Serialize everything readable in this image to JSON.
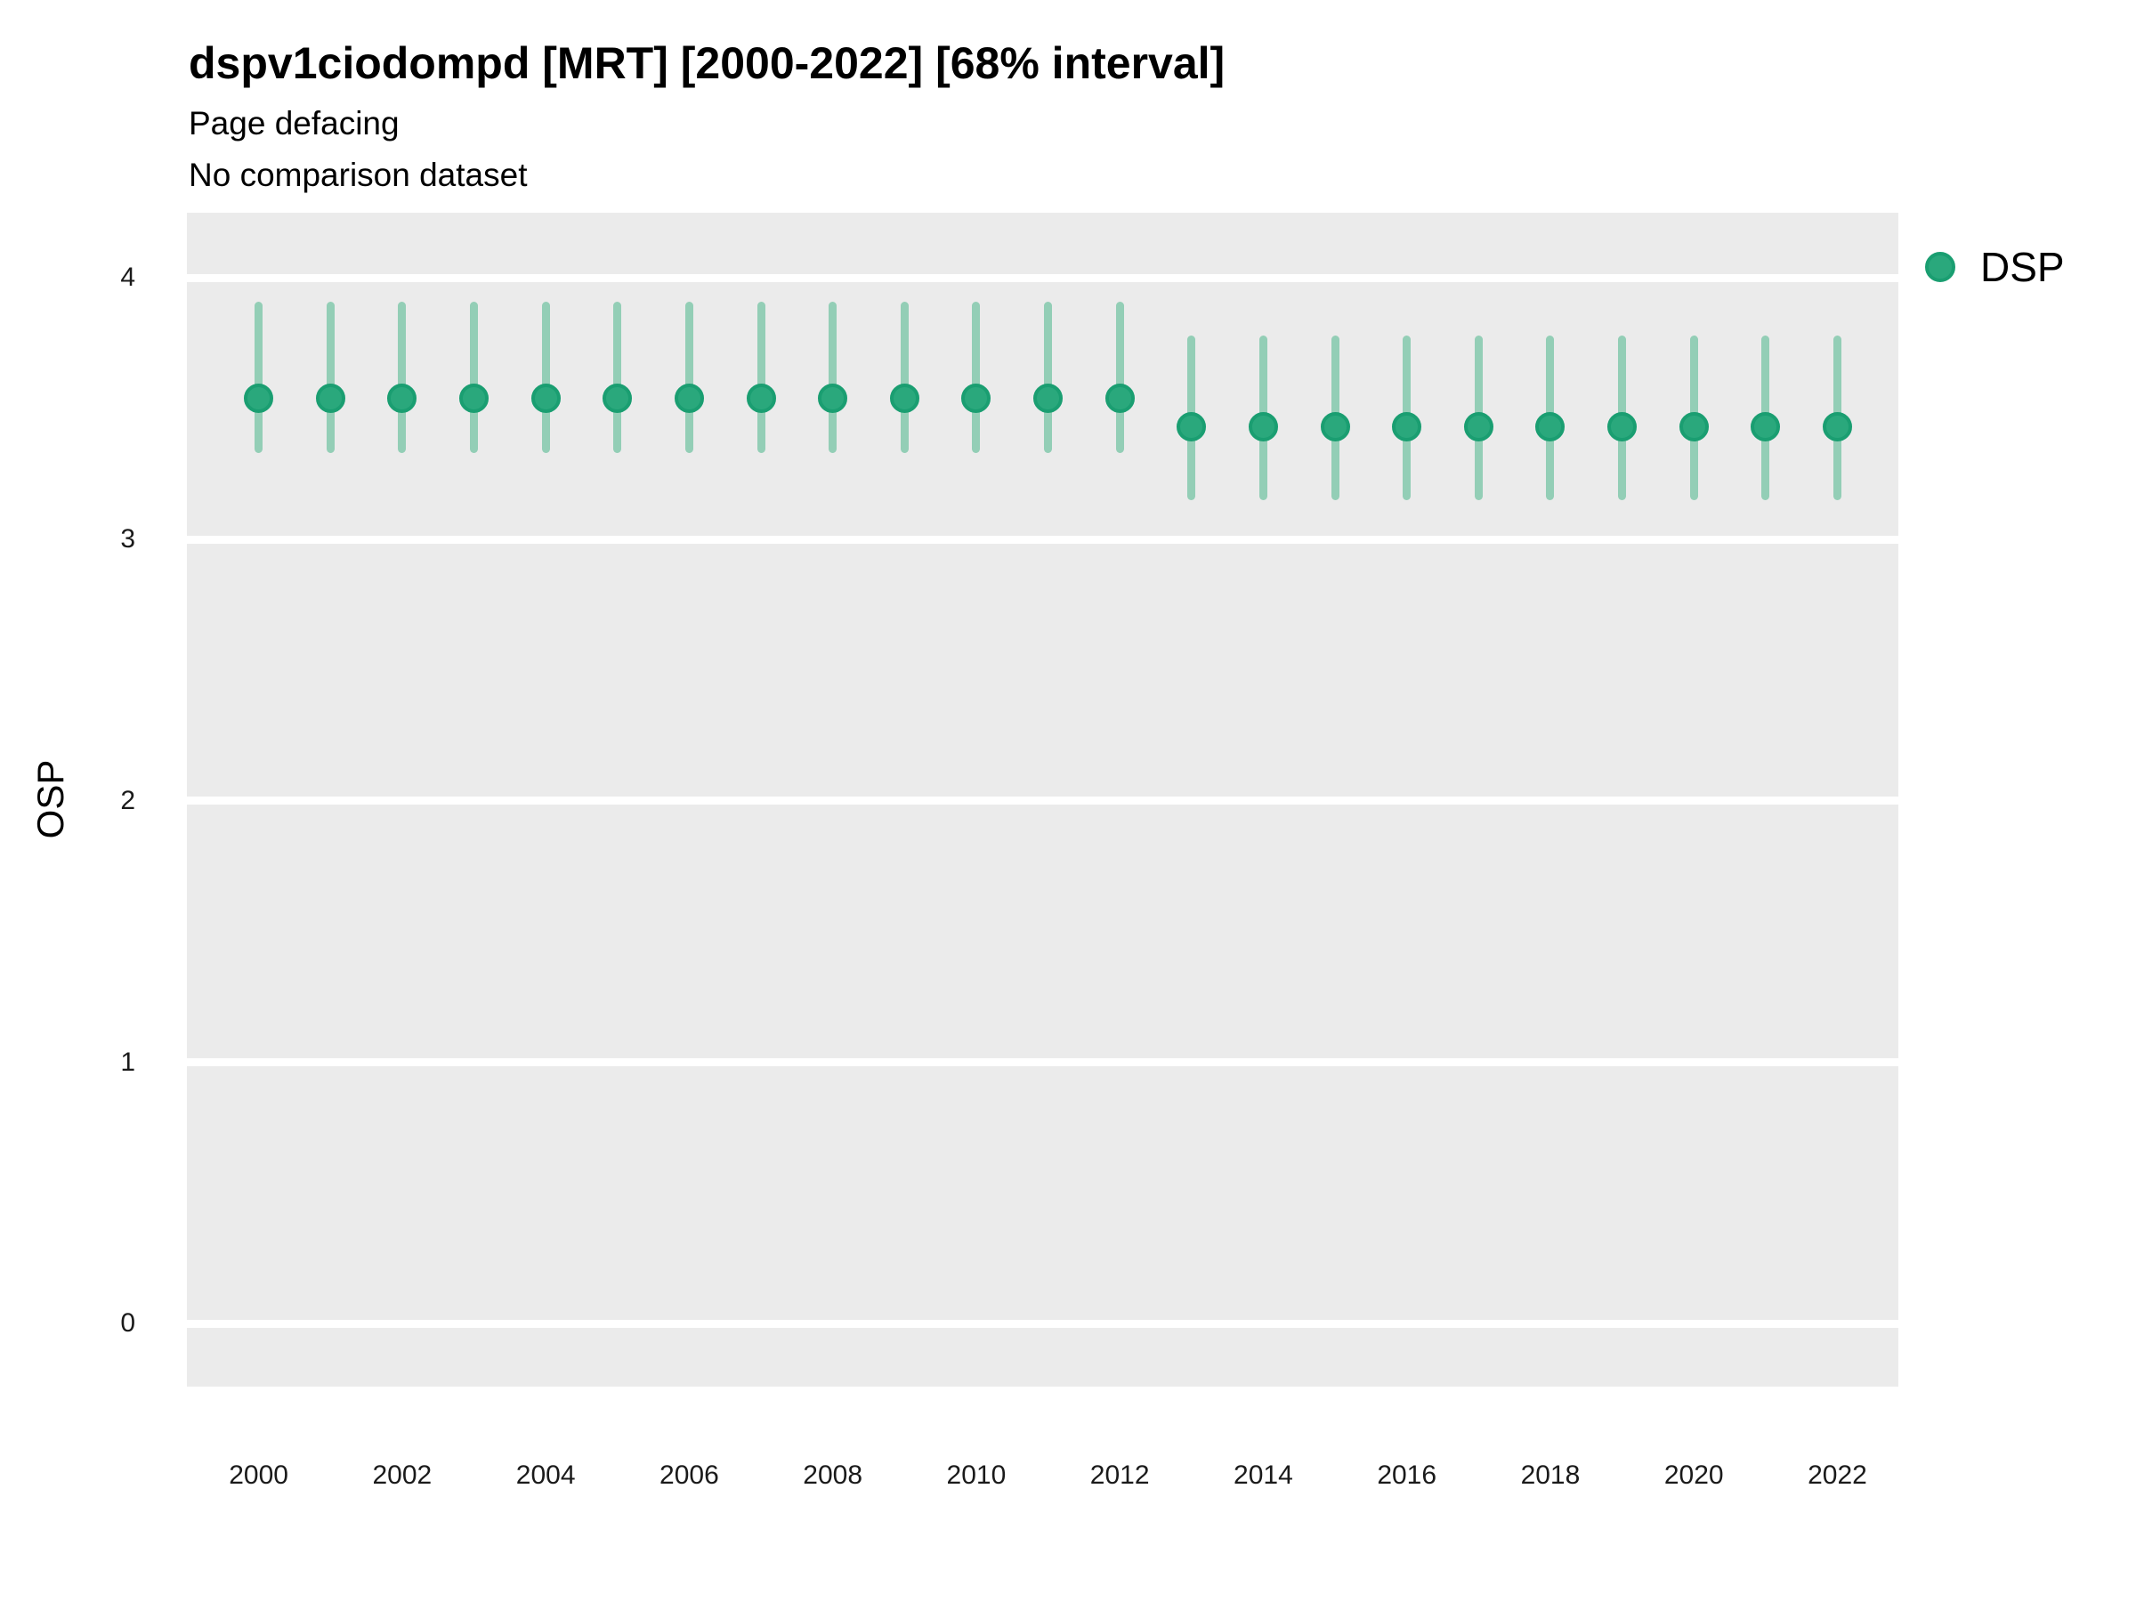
{
  "chart_data": {
    "type": "scatter",
    "subtype": "pointrange-errorbar",
    "title": "dspv1ciodompd [MRT] [2000-2022] [68% interval]",
    "subtitle": "Page defacing",
    "note": "No comparison dataset",
    "xlabel": "",
    "ylabel": "OSP",
    "interval_label": "68% interval",
    "legend_position": "right",
    "legend": [
      {
        "label": "DSP"
      }
    ],
    "grid": "horizontal-major-only",
    "xlim": [
      1999.0,
      2022.85
    ],
    "ylim": [
      -0.24,
      4.25
    ],
    "yticks": [
      0,
      1,
      2,
      3,
      4
    ],
    "xticks": [
      2000,
      2002,
      2004,
      2006,
      2008,
      2010,
      2012,
      2014,
      2016,
      2018,
      2020,
      2022
    ],
    "colors": {
      "point_fill": "#2aa87c",
      "point_stroke": "#1a9e71",
      "error_bar": "#93ceb6",
      "panel_background": "#ebebeb",
      "gridline": "#ffffff",
      "text": "#000000",
      "tick_text": "#1a1a1a"
    },
    "series": [
      {
        "name": "DSP",
        "points": [
          {
            "year": 2000,
            "mid": 3.54,
            "lo": 3.33,
            "hi": 3.91
          },
          {
            "year": 2001,
            "mid": 3.54,
            "lo": 3.33,
            "hi": 3.91
          },
          {
            "year": 2002,
            "mid": 3.54,
            "lo": 3.33,
            "hi": 3.91
          },
          {
            "year": 2003,
            "mid": 3.54,
            "lo": 3.33,
            "hi": 3.91
          },
          {
            "year": 2004,
            "mid": 3.54,
            "lo": 3.33,
            "hi": 3.91
          },
          {
            "year": 2005,
            "mid": 3.54,
            "lo": 3.33,
            "hi": 3.91
          },
          {
            "year": 2006,
            "mid": 3.54,
            "lo": 3.33,
            "hi": 3.91
          },
          {
            "year": 2007,
            "mid": 3.54,
            "lo": 3.33,
            "hi": 3.91
          },
          {
            "year": 2008,
            "mid": 3.54,
            "lo": 3.33,
            "hi": 3.91
          },
          {
            "year": 2009,
            "mid": 3.54,
            "lo": 3.33,
            "hi": 3.91
          },
          {
            "year": 2010,
            "mid": 3.54,
            "lo": 3.33,
            "hi": 3.91
          },
          {
            "year": 2011,
            "mid": 3.54,
            "lo": 3.33,
            "hi": 3.91
          },
          {
            "year": 2012,
            "mid": 3.54,
            "lo": 3.33,
            "hi": 3.91
          },
          {
            "year": 2013,
            "mid": 3.43,
            "lo": 3.15,
            "hi": 3.78
          },
          {
            "year": 2014,
            "mid": 3.43,
            "lo": 3.15,
            "hi": 3.78
          },
          {
            "year": 2015,
            "mid": 3.43,
            "lo": 3.15,
            "hi": 3.78
          },
          {
            "year": 2016,
            "mid": 3.43,
            "lo": 3.15,
            "hi": 3.78
          },
          {
            "year": 2017,
            "mid": 3.43,
            "lo": 3.15,
            "hi": 3.78
          },
          {
            "year": 2018,
            "mid": 3.43,
            "lo": 3.15,
            "hi": 3.78
          },
          {
            "year": 2019,
            "mid": 3.43,
            "lo": 3.15,
            "hi": 3.78
          },
          {
            "year": 2020,
            "mid": 3.43,
            "lo": 3.15,
            "hi": 3.78
          },
          {
            "year": 2021,
            "mid": 3.43,
            "lo": 3.15,
            "hi": 3.78
          },
          {
            "year": 2022,
            "mid": 3.43,
            "lo": 3.15,
            "hi": 3.78
          }
        ]
      }
    ]
  }
}
